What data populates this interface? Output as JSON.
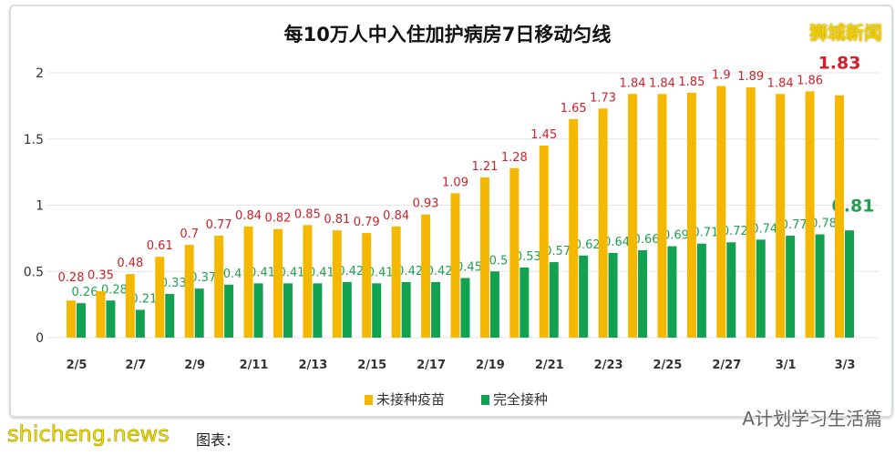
{
  "title": "每10万人中入住加护病房7日移动匀线",
  "logo": "狮城新闻",
  "credit": "图表：",
  "watermark": "shicheng.news",
  "wechat": "A计划学习生活篇",
  "colors": {
    "unvaccinated": "#f5b800",
    "vaccinated": "#12a150",
    "label_red": "#d0202a",
    "label_green": "#22a050"
  },
  "chart_data": {
    "type": "bar",
    "title": "每10万人中入住加护病房7日移动匀线",
    "categories": [
      "2/5",
      "2/6",
      "2/7",
      "2/8",
      "2/9",
      "2/10",
      "2/11",
      "2/12",
      "2/13",
      "2/14",
      "2/15",
      "2/16",
      "2/17",
      "2/18",
      "2/19",
      "2/20",
      "2/21",
      "2/22",
      "2/23",
      "2/24",
      "2/25",
      "2/26",
      "2/27",
      "2/28",
      "3/1",
      "3/2",
      "3/3"
    ],
    "xtick_labels": [
      "2/5",
      "2/7",
      "2/9",
      "2/11",
      "2/13",
      "2/15",
      "2/17",
      "2/19",
      "2/21",
      "2/23",
      "2/25",
      "2/27",
      "3/1",
      "3/3"
    ],
    "yticks": [
      "0",
      "0.5",
      "1",
      "1.5",
      "2"
    ],
    "ylim": [
      0,
      2.1
    ],
    "grid": "horizontal",
    "legend": "bottom",
    "series": [
      {
        "name": "未接种疫苗",
        "color": "#f5b800",
        "values": [
          0.28,
          0.35,
          0.48,
          0.61,
          0.7,
          0.77,
          0.84,
          0.82,
          0.85,
          0.81,
          0.79,
          0.84,
          0.93,
          1.09,
          1.21,
          1.28,
          1.45,
          1.65,
          1.73,
          1.84,
          1.84,
          1.85,
          1.9,
          1.89,
          1.84,
          1.86,
          1.83
        ]
      },
      {
        "name": "完全接种",
        "color": "#12a150",
        "values": [
          0.26,
          0.28,
          0.21,
          0.33,
          0.37,
          0.4,
          0.41,
          0.41,
          0.41,
          0.42,
          0.41,
          0.42,
          0.42,
          0.45,
          0.5,
          0.53,
          0.57,
          0.62,
          0.64,
          0.66,
          0.69,
          0.71,
          0.72,
          0.74,
          0.77,
          0.78,
          0.81
        ]
      }
    ]
  }
}
